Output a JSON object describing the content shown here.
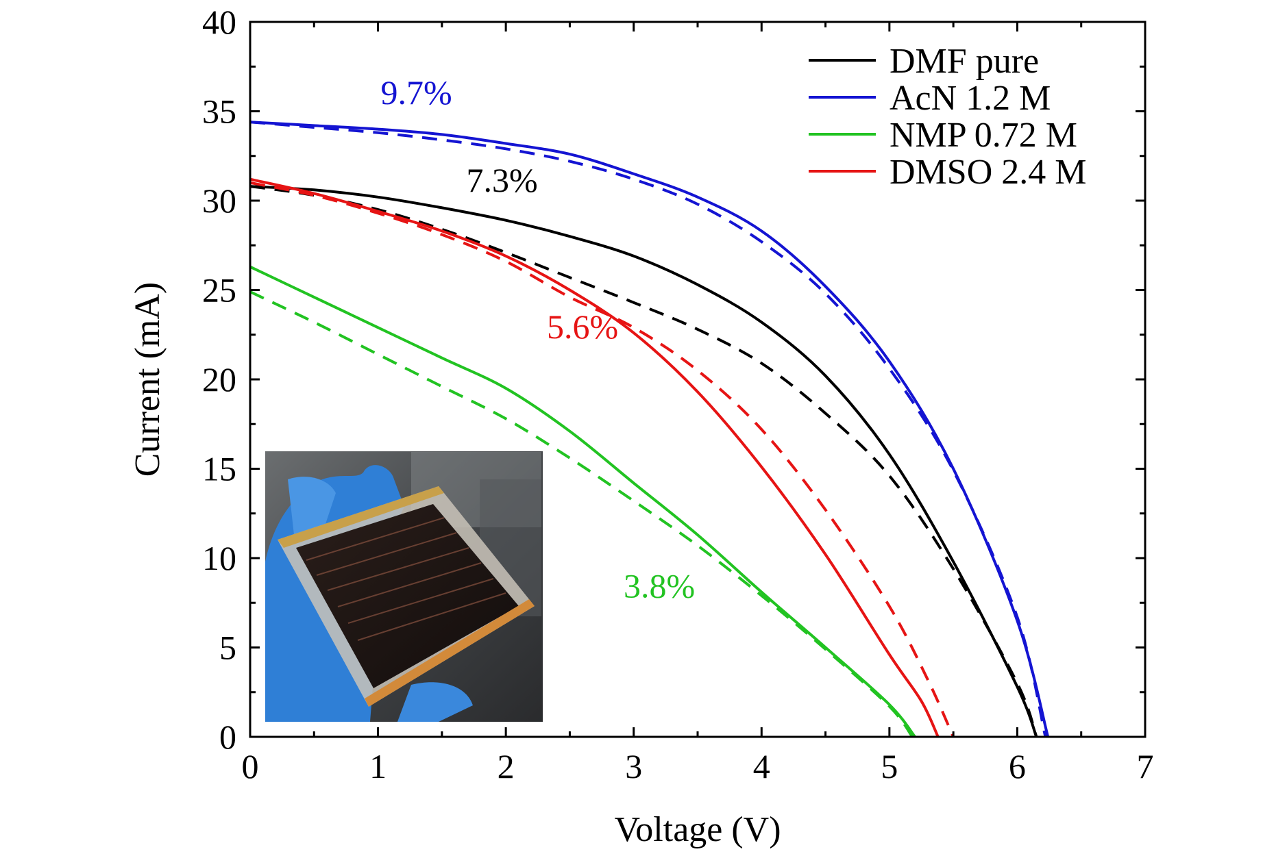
{
  "chart_data": {
    "type": "line",
    "title": "",
    "xlabel": "Voltage (V)",
    "ylabel": "Current (mA)",
    "xlim": [
      0,
      7
    ],
    "ylim": [
      0,
      40
    ],
    "x_ticks": [
      "0",
      "1",
      "2",
      "3",
      "4",
      "5",
      "6",
      "7"
    ],
    "y_ticks": [
      "0",
      "5",
      "10",
      "15",
      "20",
      "25",
      "30",
      "35",
      "40"
    ],
    "grid": false,
    "legend_position": "top-right",
    "legend_note": "solid and dashed curves share the series color",
    "series": [
      {
        "name": "DMF pure",
        "color": "#000000",
        "solid": [
          [
            0,
            30.8
          ],
          [
            0.5,
            30.6
          ],
          [
            1,
            30.2
          ],
          [
            1.5,
            29.6
          ],
          [
            2,
            28.9
          ],
          [
            2.5,
            28.0
          ],
          [
            3,
            26.9
          ],
          [
            3.5,
            25.3
          ],
          [
            4,
            23.2
          ],
          [
            4.5,
            20.2
          ],
          [
            5,
            15.8
          ],
          [
            5.5,
            9.8
          ],
          [
            6,
            2.8
          ],
          [
            6.15,
            0
          ]
        ],
        "dashed": [
          [
            0,
            30.8
          ],
          [
            0.5,
            30.3
          ],
          [
            1,
            29.5
          ],
          [
            1.5,
            28.4
          ],
          [
            2,
            27.1
          ],
          [
            2.5,
            25.7
          ],
          [
            3,
            24.3
          ],
          [
            3.5,
            22.8
          ],
          [
            4,
            20.9
          ],
          [
            4.5,
            18.1
          ],
          [
            5,
            14.6
          ],
          [
            5.5,
            9.4
          ],
          [
            6,
            3.0
          ],
          [
            6.15,
            0
          ]
        ]
      },
      {
        "name": "AcN 1.2 M",
        "color": "#1414d2",
        "solid": [
          [
            0,
            34.4
          ],
          [
            0.5,
            34.2
          ],
          [
            1,
            34.0
          ],
          [
            1.5,
            33.7
          ],
          [
            2,
            33.2
          ],
          [
            2.5,
            32.6
          ],
          [
            3,
            31.5
          ],
          [
            3.5,
            30.2
          ],
          [
            4,
            28.3
          ],
          [
            4.5,
            25.2
          ],
          [
            5,
            21.0
          ],
          [
            5.5,
            15.0
          ],
          [
            6,
            6.5
          ],
          [
            6.24,
            0
          ]
        ],
        "dashed": [
          [
            0,
            34.4
          ],
          [
            0.5,
            34.1
          ],
          [
            1,
            33.8
          ],
          [
            1.5,
            33.4
          ],
          [
            2,
            32.9
          ],
          [
            2.5,
            32.2
          ],
          [
            3,
            31.2
          ],
          [
            3.5,
            29.8
          ],
          [
            4,
            27.7
          ],
          [
            4.5,
            24.8
          ],
          [
            5,
            20.6
          ],
          [
            5.5,
            14.9
          ],
          [
            6,
            6.7
          ],
          [
            6.22,
            0
          ]
        ]
      },
      {
        "name": "NMP 0.72 M",
        "color": "#22c322",
        "solid": [
          [
            0,
            26.3
          ],
          [
            0.5,
            24.6
          ],
          [
            1,
            22.9
          ],
          [
            1.5,
            21.2
          ],
          [
            2,
            19.5
          ],
          [
            2.5,
            17.1
          ],
          [
            3,
            14.2
          ],
          [
            3.5,
            11.3
          ],
          [
            4,
            8.1
          ],
          [
            4.5,
            5.0
          ],
          [
            5,
            1.8
          ],
          [
            5.2,
            0
          ]
        ],
        "dashed": [
          [
            0,
            24.9
          ],
          [
            0.5,
            23.2
          ],
          [
            1,
            21.4
          ],
          [
            1.5,
            19.6
          ],
          [
            2,
            17.8
          ],
          [
            2.5,
            15.6
          ],
          [
            3,
            13.2
          ],
          [
            3.5,
            10.7
          ],
          [
            4,
            7.9
          ],
          [
            4.5,
            4.9
          ],
          [
            5,
            1.7
          ],
          [
            5.18,
            0
          ]
        ]
      },
      {
        "name": "DMSO 2.4 M",
        "color": "#e61414",
        "solid": [
          [
            0,
            31.2
          ],
          [
            0.5,
            30.4
          ],
          [
            1,
            29.4
          ],
          [
            1.5,
            28.3
          ],
          [
            2,
            26.9
          ],
          [
            2.5,
            25.0
          ],
          [
            3,
            22.6
          ],
          [
            3.5,
            19.3
          ],
          [
            4,
            15.1
          ],
          [
            4.5,
            10.2
          ],
          [
            5,
            4.6
          ],
          [
            5.25,
            2.0
          ],
          [
            5.38,
            0
          ]
        ],
        "dashed": [
          [
            0,
            31.0
          ],
          [
            0.5,
            30.3
          ],
          [
            1,
            29.3
          ],
          [
            1.5,
            28.1
          ],
          [
            2,
            26.6
          ],
          [
            2.5,
            24.6
          ],
          [
            3,
            22.9
          ],
          [
            3.5,
            20.5
          ],
          [
            4,
            17.2
          ],
          [
            4.5,
            12.7
          ],
          [
            5,
            7.3
          ],
          [
            5.3,
            3.2
          ],
          [
            5.5,
            0
          ]
        ]
      }
    ],
    "annotations": [
      {
        "text": "9.7%",
        "color": "#1414d2",
        "x": 1.3,
        "y": 35.4
      },
      {
        "text": "7.3%",
        "color": "#000000",
        "x": 1.97,
        "y": 30.5
      },
      {
        "text": "5.6%",
        "color": "#e61414",
        "x": 2.6,
        "y": 22.3
      },
      {
        "text": "3.8%",
        "color": "#22c322",
        "x": 3.2,
        "y": 7.8
      }
    ]
  },
  "inset": {
    "subject": "photograph of a dark solar module held in a blue-gloved hand"
  }
}
